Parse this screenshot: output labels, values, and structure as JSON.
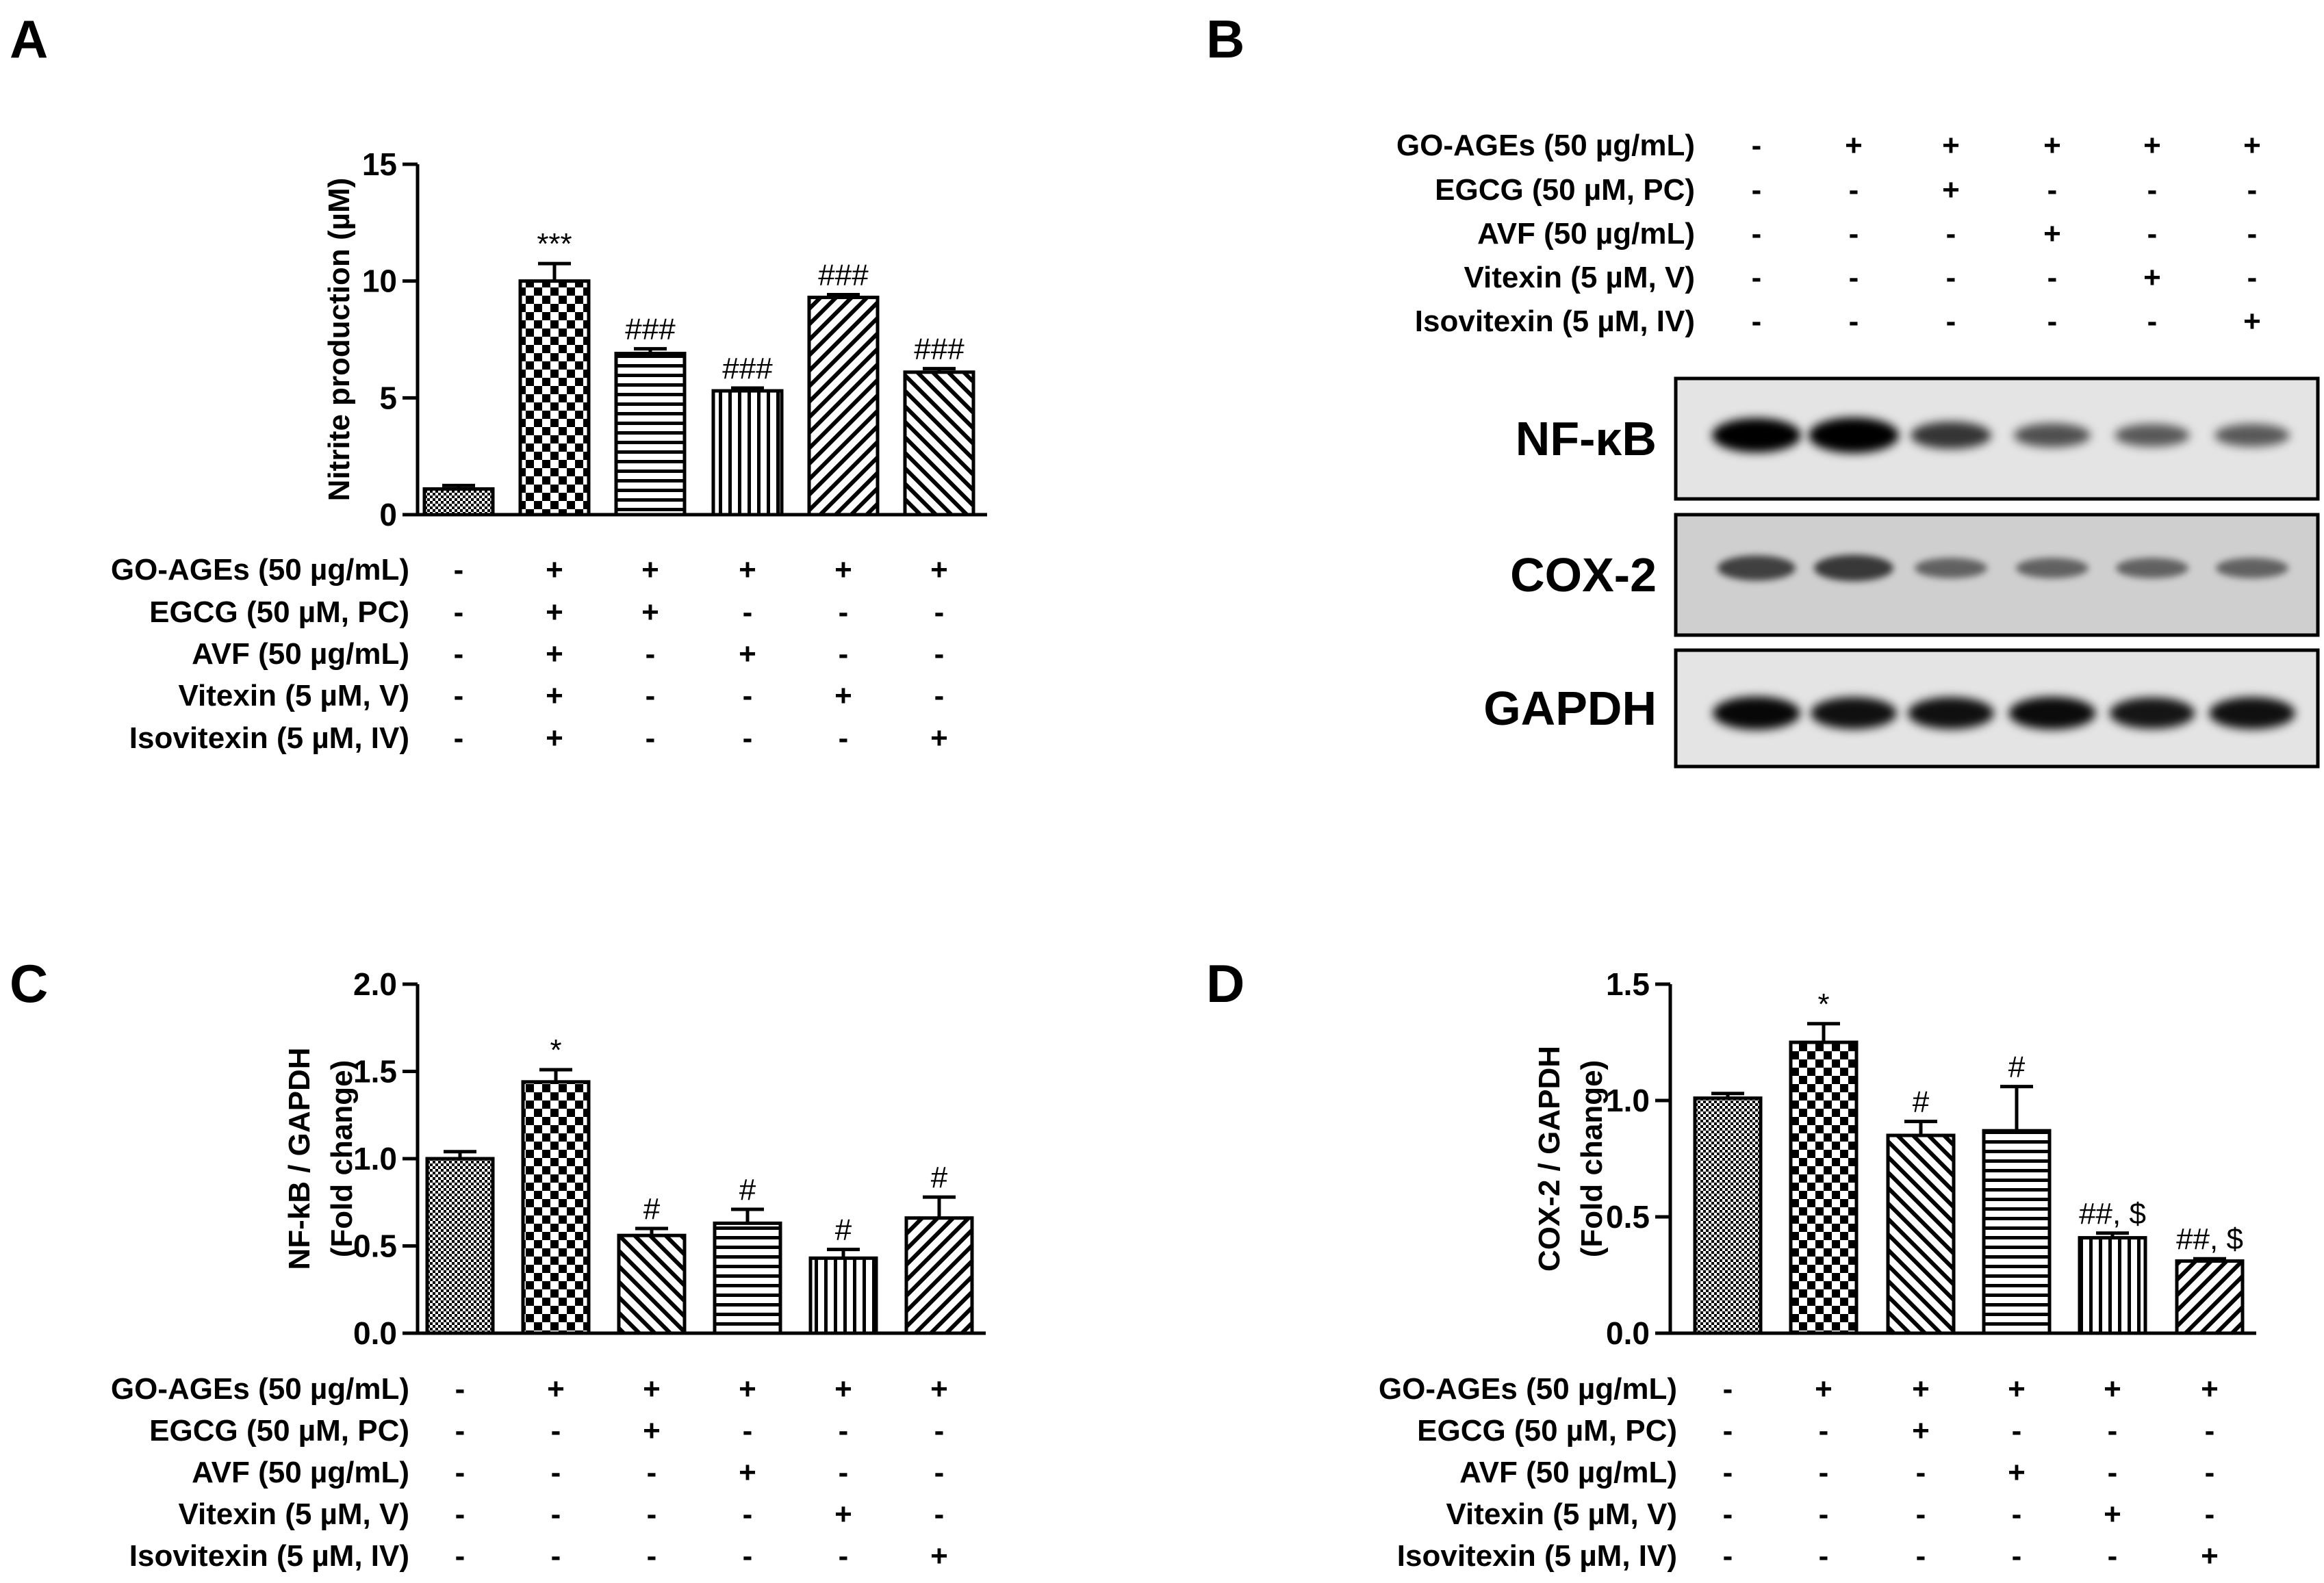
{
  "condition_labels": [
    "GO-AGEs (50 µg/mL)",
    "EGCG (50 µM, PC)",
    "AVF (50 µg/mL)",
    "Vitexin (5 µM, V)",
    "Isovitexin (5 µM, IV)"
  ],
  "colors": {
    "ink": "#000000",
    "bar_fill": "#ffffff"
  },
  "chart_data": [
    {
      "panel": "A",
      "type": "bar",
      "ylabel": "Nitrite production (µM)",
      "ylim": [
        0,
        15
      ],
      "yticks": [
        0,
        5,
        10,
        15
      ],
      "values": [
        1.1,
        10.0,
        6.9,
        5.3,
        9.3,
        6.1
      ],
      "errors": [
        0.15,
        0.75,
        0.2,
        0.12,
        0.12,
        0.15
      ],
      "annotations": [
        "",
        "***",
        "###",
        "###",
        "###",
        "###"
      ],
      "patterns": [
        "fine",
        "checker",
        "hlines",
        "vlines",
        "diag",
        "bdiag"
      ],
      "signs": [
        [
          "-",
          "+",
          "+",
          "+",
          "+",
          "+"
        ],
        [
          "-",
          "+",
          "+",
          "-",
          "-",
          "-"
        ],
        [
          "-",
          "+",
          "-",
          "+",
          "-",
          "-"
        ],
        [
          "-",
          "+",
          "-",
          "-",
          "+",
          "-"
        ],
        [
          "-",
          "+",
          "-",
          "-",
          "-",
          "+"
        ]
      ]
    },
    {
      "panel": "C",
      "type": "bar",
      "ylabel": [
        "NF-kB / GAPDH",
        "(Fold change)"
      ],
      "ylim": [
        0,
        2
      ],
      "yticks": [
        "0.0",
        "0.5",
        "1.0",
        "1.5",
        "2.0"
      ],
      "values": [
        1.0,
        1.44,
        0.56,
        0.63,
        0.43,
        0.66
      ],
      "errors": [
        0.04,
        0.07,
        0.04,
        0.08,
        0.05,
        0.12
      ],
      "annotations": [
        "",
        "*",
        "#",
        "#",
        "#",
        "#"
      ],
      "patterns": [
        "fine",
        "checker",
        "bdiag",
        "hlines",
        "vlines",
        "diag"
      ],
      "signs": [
        [
          "-",
          "+",
          "+",
          "+",
          "+",
          "+"
        ],
        [
          "-",
          "-",
          "+",
          "-",
          "-",
          "-"
        ],
        [
          "-",
          "-",
          "-",
          "+",
          "-",
          "-"
        ],
        [
          "-",
          "-",
          "-",
          "-",
          "+",
          "-"
        ],
        [
          "-",
          "-",
          "-",
          "-",
          "-",
          "+"
        ]
      ]
    },
    {
      "panel": "D",
      "type": "bar",
      "ylabel": [
        "COX-2 / GAPDH",
        "(Fold change)"
      ],
      "ylim": [
        0,
        1.5
      ],
      "yticks": [
        "0.0",
        "0.5",
        "1.0",
        "1.5"
      ],
      "values": [
        1.01,
        1.25,
        0.85,
        0.87,
        0.41,
        0.31
      ],
      "errors": [
        0.02,
        0.08,
        0.06,
        0.19,
        0.02,
        0.01
      ],
      "annotations": [
        "",
        "*",
        "#",
        "#",
        "##, $",
        "##, $"
      ],
      "patterns": [
        "fine",
        "checker",
        "bdiag",
        "hlines",
        "vlines",
        "diag"
      ],
      "signs": [
        [
          "-",
          "+",
          "+",
          "+",
          "+",
          "+"
        ],
        [
          "-",
          "-",
          "+",
          "-",
          "-",
          "-"
        ],
        [
          "-",
          "-",
          "-",
          "+",
          "-",
          "-"
        ],
        [
          "-",
          "-",
          "-",
          "-",
          "+",
          "-"
        ],
        [
          "-",
          "-",
          "-",
          "-",
          "-",
          "+"
        ]
      ]
    }
  ],
  "blot": {
    "panel": "B",
    "labels": [
      "NF-κB",
      "COX-2",
      "GAPDH"
    ],
    "band_intensity": [
      [
        0.95,
        1.0,
        0.65,
        0.5,
        0.45,
        0.45
      ],
      [
        0.55,
        0.6,
        0.35,
        0.35,
        0.35,
        0.35
      ],
      [
        0.9,
        0.85,
        0.85,
        0.88,
        0.82,
        0.85
      ]
    ],
    "signs": [
      [
        "-",
        "+",
        "+",
        "+",
        "+",
        "+"
      ],
      [
        "-",
        "-",
        "+",
        "-",
        "-",
        "-"
      ],
      [
        "-",
        "-",
        "-",
        "+",
        "-",
        "-"
      ],
      [
        "-",
        "-",
        "-",
        "-",
        "+",
        "-"
      ],
      [
        "-",
        "-",
        "-",
        "-",
        "-",
        "+"
      ]
    ]
  }
}
